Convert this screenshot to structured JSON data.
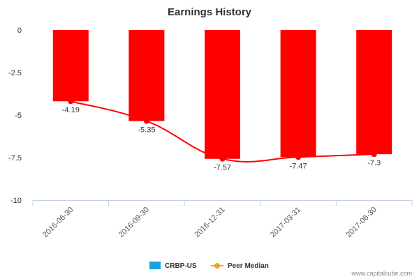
{
  "chart_data": {
    "type": "bar",
    "title": "Earnings History",
    "xlabel": "",
    "ylabel": "",
    "categories": [
      "2016-06-30",
      "2016-09-30",
      "2016-12-31",
      "2017-03-31",
      "2017-06-30"
    ],
    "ylim": [
      -10,
      0
    ],
    "yticks": [
      0,
      -2.5,
      -5,
      -7.5,
      -10
    ],
    "ytick_labels": [
      "0",
      "-2.5",
      "-5",
      "-7.5",
      "-10"
    ],
    "series": [
      {
        "name": "CRBP-US",
        "type": "bar",
        "color": "#ff0000",
        "legend_color": "#1ba1e2",
        "values": [
          -4.19,
          -5.35,
          -7.57,
          -7.47,
          -7.3
        ]
      },
      {
        "name": "Peer Median",
        "type": "line",
        "color": "#ff0000",
        "legend_color": "#f7a21b",
        "values": [
          -4.19,
          -5.35,
          -7.57,
          -7.47,
          -7.3
        ]
      }
    ],
    "data_labels": [
      "-4.19",
      "-5.35",
      "-7.57",
      "-7.47",
      "-7.3"
    ],
    "legend_position": "bottom-center",
    "grid": false
  },
  "watermark": "www.capitalcube.com"
}
